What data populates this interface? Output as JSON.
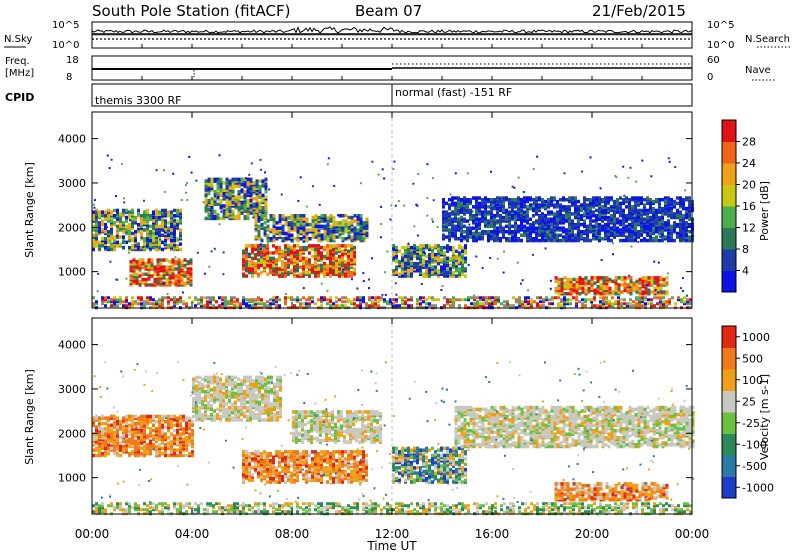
{
  "header": {
    "station": "South Pole Station (fitACF)",
    "beam": "Beam 07",
    "date": "21/Feb/2015"
  },
  "noise_panel": {
    "left_label": "N.Sky",
    "right_label": "N.Search",
    "left_ticks": [
      "10^5",
      "10^0"
    ],
    "right_ticks": [
      "10^5",
      "10^0"
    ]
  },
  "freq_panel": {
    "left_label_top": "Freq.",
    "left_label_bottom": "[MHz]",
    "left_ticks": [
      "18",
      "8"
    ],
    "right_label": "Nave",
    "right_ticks": [
      "60",
      "0"
    ]
  },
  "cpid_panel": {
    "label": "CPID",
    "segments": [
      {
        "start_hour": 0,
        "text": "themis 3300 RF"
      },
      {
        "start_hour": 12,
        "text": "normal (fast) -151 RF"
      }
    ]
  },
  "time_axis": {
    "label": "Time UT",
    "ticks": [
      "00:00",
      "04:00",
      "08:00",
      "12:00",
      "16:00",
      "20:00",
      "00:00"
    ]
  },
  "chart_data": [
    {
      "type": "heatmap",
      "title": "",
      "xlabel": "Time UT",
      "ylabel": "Slant Range [km]",
      "x_range_hours": [
        0,
        24
      ],
      "ylim": [
        180,
        4600
      ],
      "y_ticks": [
        1000,
        2000,
        3000,
        4000
      ],
      "colorbar": {
        "label": "Power [dB]",
        "ticks": [
          "4",
          "8",
          "12",
          "16",
          "20",
          "24",
          "28"
        ],
        "colors": [
          "#0a14e6",
          "#1e3ca8",
          "#2a7a5a",
          "#4cae4a",
          "#c8c814",
          "#f0a018",
          "#f06418",
          "#e01414"
        ]
      },
      "echo_regions": [
        {
          "t0": 0.0,
          "t1": 3.5,
          "r0": 1500,
          "r1": 2400,
          "level": "mid"
        },
        {
          "t0": 1.5,
          "t1": 4.0,
          "r0": 700,
          "r1": 1300,
          "level": "high"
        },
        {
          "t0": 4.5,
          "t1": 7.0,
          "r0": 2200,
          "r1": 3100,
          "level": "mid"
        },
        {
          "t0": 6.0,
          "t1": 10.5,
          "r0": 900,
          "r1": 1600,
          "level": "high"
        },
        {
          "t0": 6.5,
          "t1": 11.0,
          "r0": 1700,
          "r1": 2300,
          "level": "mid"
        },
        {
          "t0": 12.0,
          "t1": 15.0,
          "r0": 900,
          "r1": 1600,
          "level": "mid"
        },
        {
          "t0": 14.0,
          "t1": 24.0,
          "r0": 1700,
          "r1": 2700,
          "level": "low"
        },
        {
          "t0": 18.5,
          "t1": 23.0,
          "r0": 500,
          "r1": 900,
          "level": "high"
        }
      ]
    },
    {
      "type": "heatmap",
      "title": "",
      "xlabel": "Time UT",
      "ylabel": "Slant Range [km]",
      "x_range_hours": [
        0,
        24
      ],
      "ylim": [
        180,
        4600
      ],
      "y_ticks": [
        1000,
        2000,
        3000,
        4000
      ],
      "colorbar": {
        "label": "Velocity [m s-1]",
        "ticks": [
          "1000",
          "500",
          "100",
          "25",
          "-25",
          "-100",
          "-500",
          "-1000"
        ],
        "colors": [
          "#1e3cc8",
          "#2a7aa8",
          "#2a8a5a",
          "#6ac040",
          "#c8c8c0",
          "#f0a018",
          "#f07818",
          "#e02814"
        ]
      },
      "echo_regions": [
        {
          "t0": 0.0,
          "t1": 4.0,
          "r0": 1500,
          "r1": 2400,
          "level": "orange"
        },
        {
          "t0": 4.0,
          "t1": 7.5,
          "r0": 2300,
          "r1": 3300,
          "level": "grey"
        },
        {
          "t0": 6.0,
          "t1": 11.0,
          "r0": 900,
          "r1": 1600,
          "level": "orange"
        },
        {
          "t0": 8.0,
          "t1": 11.5,
          "r0": 1800,
          "r1": 2500,
          "level": "grey"
        },
        {
          "t0": 12.0,
          "t1": 15.0,
          "r0": 900,
          "r1": 1700,
          "level": "mixed"
        },
        {
          "t0": 14.5,
          "t1": 24.0,
          "r0": 1700,
          "r1": 2600,
          "level": "grey"
        },
        {
          "t0": 18.5,
          "t1": 23.0,
          "r0": 500,
          "r1": 900,
          "level": "orange"
        }
      ]
    }
  ]
}
